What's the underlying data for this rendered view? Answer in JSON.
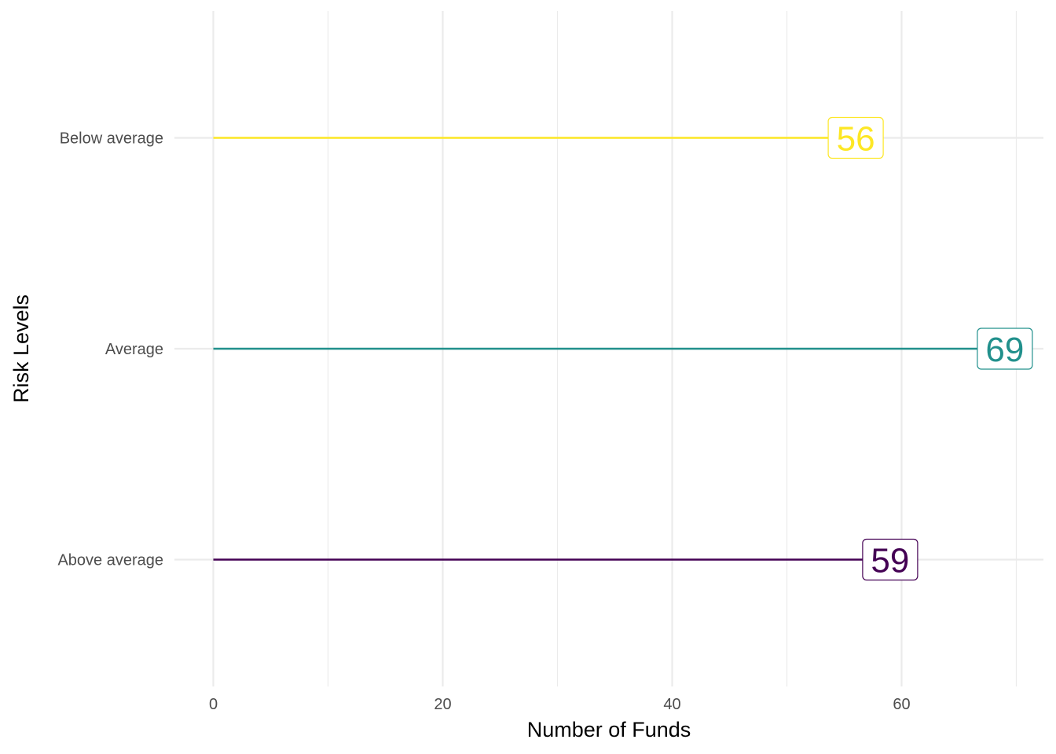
{
  "chart_data": {
    "type": "lollipop",
    "orientation": "horizontal",
    "title": "",
    "xlabel": "Number of Funds",
    "ylabel": "Risk Levels",
    "categories": [
      "Above average",
      "Average",
      "Below average"
    ],
    "values": [
      59,
      69,
      56
    ],
    "colors": [
      "#440154",
      "#21908C",
      "#FDE725"
    ],
    "xlim": [
      -3.4,
      72.5
    ],
    "xticks": [
      0,
      20,
      40,
      60
    ],
    "xtick_labels": [
      "0",
      "20",
      "40",
      "60"
    ],
    "x_minor_gridlines": [
      10,
      30,
      50,
      70
    ],
    "grid": true,
    "legend": "none"
  }
}
